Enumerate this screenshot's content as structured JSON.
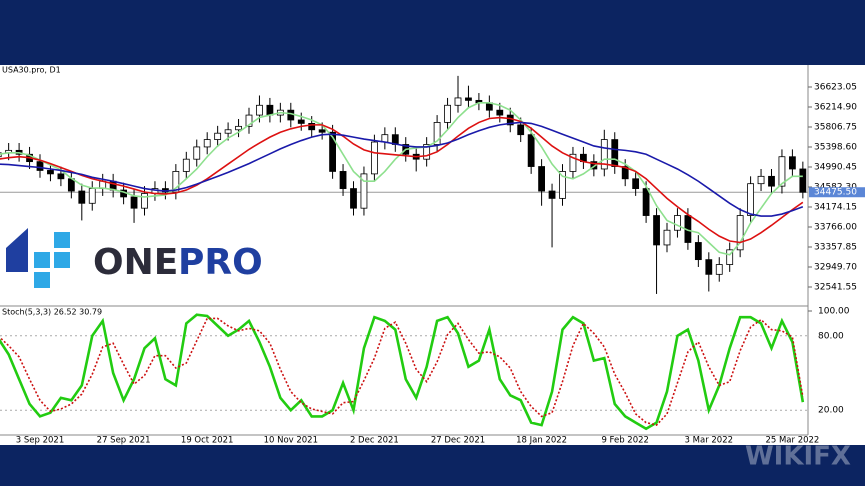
{
  "chart_data": [
    {
      "type": "candlestick",
      "title": "USA30.pro, D1",
      "ylim": [
        32174.2,
        37031.2
      ],
      "yticks": [
        {
          "value": 36623.05,
          "label": "36623.05"
        },
        {
          "value": 36214.9,
          "label": "36214.90"
        },
        {
          "value": 35806.75,
          "label": "35806.75"
        },
        {
          "value": 35398.6,
          "label": "35398.60"
        },
        {
          "value": 34990.45,
          "label": "34990.45"
        },
        {
          "value": 34582.3,
          "label": "34582.30"
        },
        {
          "value": 34174.15,
          "label": "34174.15"
        },
        {
          "value": 33766,
          "label": "33766.00"
        },
        {
          "value": 33357.85,
          "label": "33357.85"
        },
        {
          "value": 32949.7,
          "label": "32949.70"
        },
        {
          "value": 32541.55,
          "label": "32541.55"
        }
      ],
      "last_price": {
        "value": 34475.5,
        "label": "34475.50"
      },
      "up_color": "#ffffff",
      "down_color": "#000000",
      "open": [
        35200,
        35280,
        35330,
        35250,
        35100,
        34920,
        34850,
        34750,
        34500,
        34250,
        34550,
        34700,
        34520,
        34380,
        34150,
        34450,
        34550,
        34480,
        34900,
        35150,
        35400,
        35550,
        35680,
        35750,
        35820,
        36050,
        36250,
        36050,
        36150,
        35950,
        35880,
        35750,
        35700,
        34900,
        34550,
        34150,
        34850,
        35500,
        35650,
        35450,
        35250,
        35150,
        35450,
        35900,
        36250,
        36400,
        36350,
        36300,
        36150,
        36050,
        35850,
        35650,
        35000,
        34500,
        34350,
        34900,
        35250,
        35100,
        34950,
        35550,
        35000,
        34750,
        34550,
        34000,
        33400,
        33700,
        34000,
        33450,
        33100,
        32800,
        33000,
        33300,
        34000,
        34650,
        34800,
        34600,
        35200,
        34950
      ],
      "high": [
        35430,
        35480,
        35480,
        35400,
        35250,
        35070,
        35000,
        34900,
        34650,
        34700,
        34850,
        34850,
        34670,
        34530,
        34600,
        34700,
        34700,
        35050,
        35300,
        35550,
        35700,
        35830,
        35900,
        35970,
        36200,
        36450,
        36400,
        36300,
        36300,
        36100,
        36030,
        35900,
        35850,
        35050,
        34700,
        35000,
        35650,
        35800,
        35800,
        35600,
        35400,
        35600,
        36050,
        36400,
        36850,
        36650,
        36500,
        36450,
        36300,
        36200,
        36000,
        35800,
        35150,
        34650,
        35050,
        35400,
        35400,
        35250,
        35750,
        35700,
        35150,
        34900,
        34700,
        34150,
        33850,
        34150,
        34150,
        33600,
        33250,
        33150,
        33450,
        34150,
        34800,
        34950,
        34950,
        35350,
        35350,
        35100
      ],
      "low": [
        35050,
        35130,
        35100,
        34950,
        34770,
        34700,
        34600,
        34350,
        33900,
        34100,
        34400,
        34370,
        34230,
        33850,
        34000,
        34300,
        34330,
        34330,
        34750,
        35000,
        35250,
        35400,
        35530,
        35600,
        35670,
        35900,
        35900,
        35900,
        35800,
        35730,
        35600,
        35550,
        34750,
        34400,
        34000,
        34000,
        34700,
        35350,
        35300,
        35100,
        34900,
        35000,
        35300,
        35750,
        36100,
        36200,
        36150,
        36000,
        35900,
        35700,
        35500,
        34850,
        34200,
        33350,
        34200,
        34750,
        34950,
        34800,
        34800,
        34850,
        34600,
        34400,
        33850,
        32400,
        33250,
        33550,
        33300,
        32950,
        32450,
        32650,
        32850,
        33150,
        33850,
        34500,
        34450,
        34450,
        34800,
        34350
      ],
      "close": [
        35280,
        35330,
        35250,
        35100,
        34920,
        34850,
        34750,
        34500,
        34250,
        34550,
        34700,
        34520,
        34380,
        34150,
        34450,
        34550,
        34480,
        34900,
        35150,
        35400,
        35550,
        35680,
        35750,
        35820,
        36050,
        36250,
        36050,
        36150,
        35950,
        35880,
        35750,
        35700,
        34900,
        34550,
        34150,
        34850,
        35500,
        35650,
        35450,
        35250,
        35150,
        35450,
        35900,
        36250,
        36400,
        36350,
        36300,
        36150,
        36050,
        35850,
        35650,
        35000,
        34500,
        34350,
        34900,
        35250,
        35100,
        34950,
        35550,
        35000,
        34750,
        34550,
        34000,
        33400,
        33700,
        34000,
        33450,
        33100,
        32800,
        33000,
        33300,
        34000,
        34650,
        34800,
        34600,
        35200,
        34950,
        34475
      ],
      "lines": [
        {
          "color": "#8ee08e",
          "values": [
            35250,
            35280,
            35280,
            35230,
            35130,
            35030,
            34930,
            34760,
            34620,
            34560,
            34560,
            34530,
            34480,
            34400,
            34380,
            34400,
            34420,
            34560,
            34750,
            34950,
            35200,
            35420,
            35580,
            35700,
            35850,
            36000,
            36050,
            36100,
            36080,
            36020,
            35950,
            35850,
            35600,
            35250,
            34900,
            34700,
            34700,
            34900,
            35150,
            35350,
            35380,
            35400,
            35520,
            35750,
            36000,
            36200,
            36300,
            36300,
            36250,
            36150,
            35950,
            35700,
            35400,
            35050,
            34800,
            34750,
            34850,
            35000,
            35150,
            35150,
            35050,
            34900,
            34600,
            34200,
            33900,
            33800,
            33700,
            33650,
            33450,
            33250,
            33200,
            33450,
            33850,
            34150,
            34450,
            34650,
            34800,
            34800
          ]
        },
        {
          "color": "#dd1111",
          "values": [
            35150,
            35180,
            35200,
            35180,
            35130,
            35060,
            34980,
            34900,
            34820,
            34750,
            34700,
            34650,
            34600,
            34540,
            34480,
            34450,
            34440,
            34460,
            34520,
            34620,
            34750,
            34900,
            35050,
            35200,
            35350,
            35480,
            35600,
            35700,
            35770,
            35820,
            35850,
            35850,
            35760,
            35620,
            35460,
            35340,
            35280,
            35260,
            35240,
            35220,
            35200,
            35220,
            35300,
            35450,
            35620,
            35780,
            35900,
            35980,
            36000,
            35980,
            35920,
            35780,
            35600,
            35420,
            35280,
            35180,
            35100,
            35060,
            35050,
            35020,
            34980,
            34900,
            34750,
            34550,
            34350,
            34180,
            34020,
            33880,
            33720,
            33580,
            33480,
            33450,
            33520,
            33650,
            33800,
            33960,
            34120,
            34270
          ]
        },
        {
          "color": "#1a1aaa",
          "values": [
            35050,
            35040,
            35020,
            35000,
            34980,
            34950,
            34920,
            34880,
            34840,
            34780,
            34740,
            34700,
            34650,
            34600,
            34550,
            34520,
            34500,
            34520,
            34570,
            34640,
            34720,
            34800,
            34880,
            34970,
            35060,
            35160,
            35260,
            35360,
            35450,
            35530,
            35600,
            35650,
            35660,
            35640,
            35600,
            35560,
            35530,
            35500,
            35460,
            35420,
            35400,
            35400,
            35430,
            35480,
            35560,
            35650,
            35730,
            35800,
            35850,
            35880,
            35900,
            35880,
            35820,
            35740,
            35660,
            35580,
            35500,
            35420,
            35380,
            35350,
            35330,
            35300,
            35250,
            35150,
            35050,
            34950,
            34830,
            34700,
            34550,
            34400,
            34250,
            34120,
            34030,
            33990,
            33990,
            34030,
            34100,
            34180
          ]
        }
      ]
    },
    {
      "type": "line",
      "title": "Stoch(5,3,3) 26.52 30.79",
      "ylim": [
        0,
        100
      ],
      "yticks": [
        {
          "value": 100,
          "label": "100.00"
        },
        {
          "value": 80,
          "label": "80.00"
        },
        {
          "value": 20,
          "label": "20.00"
        }
      ],
      "categories": [
        null,
        null,
        null,
        null,
        "3 Sep 2021",
        null,
        null,
        null,
        null,
        null,
        null,
        null,
        "27 Sep 2021",
        null,
        null,
        null,
        null,
        null,
        null,
        null,
        "19 Oct 2021",
        null,
        null,
        null,
        null,
        null,
        null,
        null,
        "10 Nov 2021",
        null,
        null,
        null,
        null,
        null,
        null,
        null,
        "2 Dec 2021",
        null,
        null,
        null,
        null,
        null,
        null,
        null,
        "27 Dec 2021",
        null,
        null,
        null,
        null,
        null,
        null,
        null,
        "18 Jan 2022",
        null,
        null,
        null,
        null,
        null,
        null,
        null,
        "9 Feb 2022",
        null,
        null,
        null,
        null,
        null,
        null,
        null,
        "3 Mar 2022",
        null,
        null,
        null,
        null,
        null,
        null,
        null,
        "25 Mar 2022",
        null
      ],
      "series": [
        {
          "color": "#22cc11",
          "style": "solid",
          "values": [
            78,
            65,
            45,
            25,
            15,
            18,
            30,
            28,
            40,
            80,
            92,
            50,
            28,
            45,
            70,
            78,
            45,
            40,
            90,
            97,
            96,
            88,
            80,
            85,
            92,
            75,
            55,
            30,
            20,
            28,
            15,
            15,
            20,
            42,
            20,
            70,
            95,
            92,
            85,
            45,
            30,
            55,
            92,
            95,
            82,
            55,
            60,
            85,
            45,
            32,
            28,
            10,
            8,
            35,
            85,
            95,
            90,
            60,
            62,
            25,
            15,
            10,
            5,
            10,
            35,
            80,
            85,
            60,
            20,
            40,
            70,
            95,
            95,
            90,
            70,
            92,
            75,
            26.52
          ]
        },
        {
          "color": "#cc1111",
          "style": "dotted",
          "values": [
            80,
            72,
            63,
            45,
            28,
            19,
            21,
            25,
            33,
            49,
            71,
            74,
            57,
            41,
            48,
            64,
            64,
            54,
            58,
            76,
            94,
            94,
            88,
            84,
            86,
            84,
            74,
            53,
            35,
            26,
            21,
            19,
            17,
            26,
            27,
            44,
            62,
            86,
            91,
            74,
            53,
            43,
            59,
            81,
            90,
            77,
            66,
            67,
            63,
            54,
            35,
            23,
            15,
            18,
            43,
            72,
            90,
            82,
            71,
            49,
            34,
            17,
            10,
            8,
            17,
            42,
            67,
            75,
            55,
            40,
            43,
            68,
            87,
            93,
            85,
            84,
            79,
            30.79
          ]
        }
      ]
    }
  ],
  "logo": {
    "part1": "ONE",
    "part2": "PRO"
  },
  "watermark": "WIKIFX"
}
